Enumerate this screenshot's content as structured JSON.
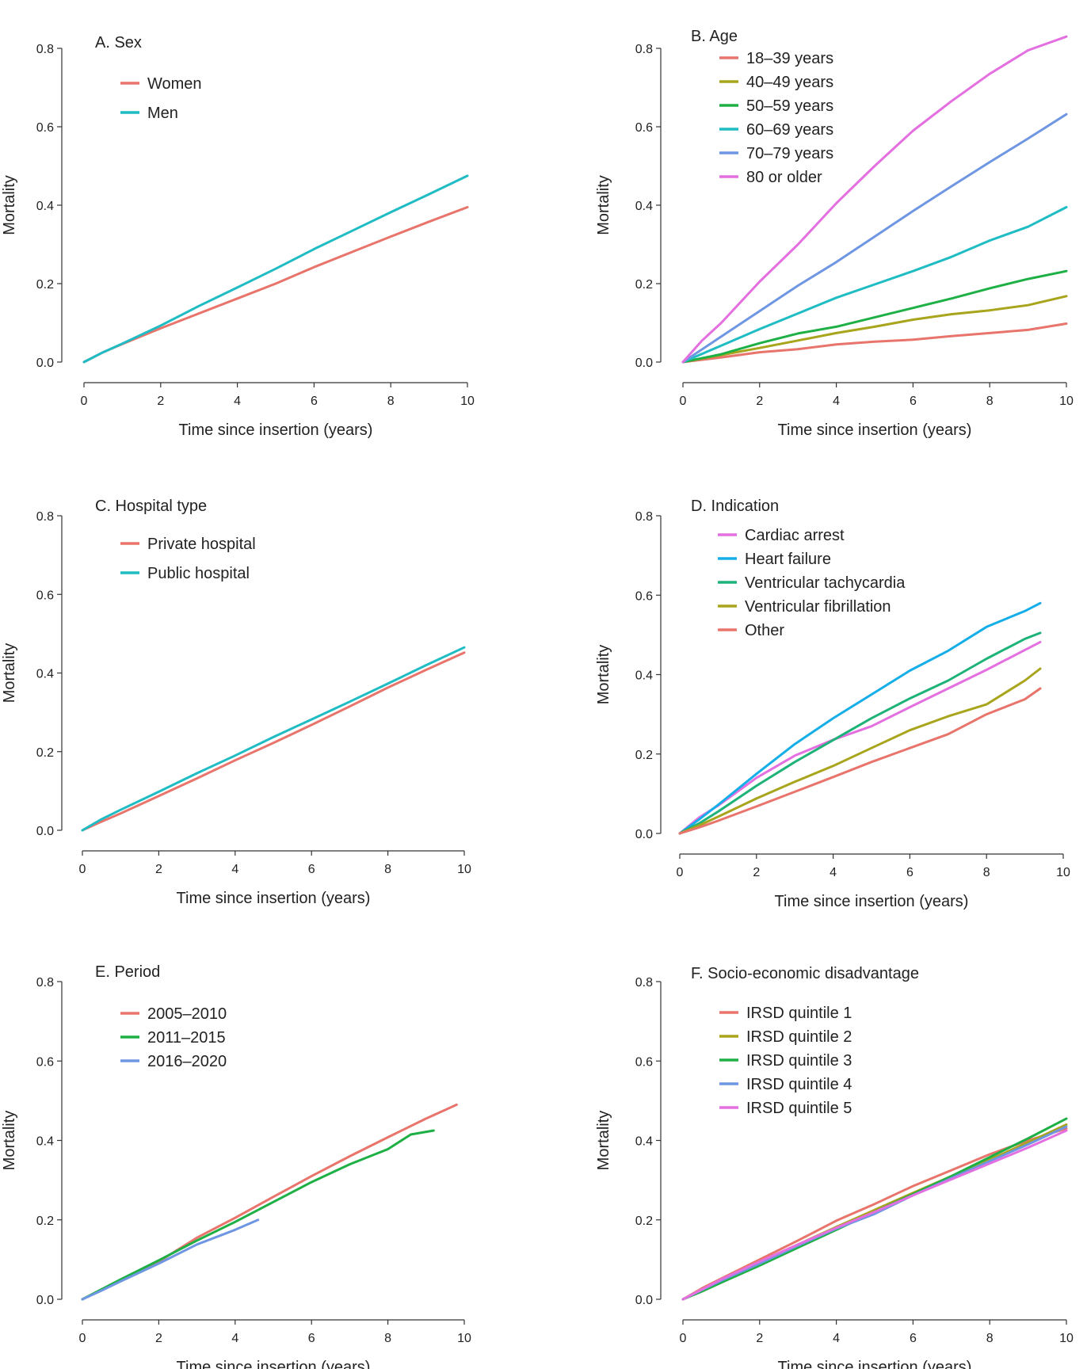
{
  "colors": {
    "red": "#e8746b",
    "teal": "#1fbcc4",
    "olive": "#a8a51c",
    "green": "#1eb045",
    "blue": "#6f96e2",
    "magenta": "#e46fe0",
    "heart_failure_blue": "#15aee8",
    "green_teal": "#1db378",
    "axis": "#333333",
    "text": "#222222"
  },
  "chart_data": [
    {
      "id": "A",
      "type": "line",
      "title": "A.  Sex",
      "xlabel": "Time since insertion (years)",
      "ylabel": "Mortality",
      "xlim": [
        0,
        10
      ],
      "ylim": [
        0,
        0.8
      ],
      "x_ticks": [
        "0",
        "2",
        "4",
        "6",
        "8",
        "10"
      ],
      "y_ticks": [
        "0.0",
        "0.2",
        "0.4",
        "0.6",
        "0.8"
      ],
      "grid": false,
      "legend_position": "top-left",
      "series": [
        {
          "name": "Women",
          "color": "#e8746b",
          "x": [
            0,
            0.5,
            1,
            2,
            3,
            4,
            5,
            6,
            7,
            8,
            9,
            10
          ],
          "y": [
            0,
            0.025,
            0.046,
            0.086,
            0.124,
            0.162,
            0.2,
            0.242,
            0.281,
            0.32,
            0.358,
            0.395
          ]
        },
        {
          "name": "Men",
          "color": "#1fbcc4",
          "x": [
            0,
            0.5,
            1,
            2,
            3,
            4,
            5,
            6,
            7,
            8,
            9,
            10
          ],
          "y": [
            0,
            0.025,
            0.047,
            0.093,
            0.143,
            0.19,
            0.238,
            0.288,
            0.335,
            0.382,
            0.428,
            0.475
          ]
        }
      ]
    },
    {
      "id": "B",
      "type": "line",
      "title": "B.  Age",
      "xlabel": "Time since insertion (years)",
      "ylabel": "Mortality",
      "xlim": [
        0,
        10
      ],
      "ylim": [
        0,
        0.8
      ],
      "x_ticks": [
        "0",
        "2",
        "4",
        "6",
        "8",
        "10"
      ],
      "y_ticks": [
        "0.0",
        "0.2",
        "0.4",
        "0.6",
        "0.8"
      ],
      "grid": false,
      "legend_position": "top-left",
      "series": [
        {
          "name": "18–39 years",
          "color": "#e8746b",
          "x": [
            0,
            1,
            2,
            3,
            4,
            5,
            6,
            7,
            8,
            9,
            10
          ],
          "y": [
            0,
            0.012,
            0.025,
            0.033,
            0.045,
            0.052,
            0.057,
            0.066,
            0.074,
            0.082,
            0.098
          ]
        },
        {
          "name": "40–49 years",
          "color": "#a8a51c",
          "x": [
            0,
            1,
            2,
            3,
            4,
            5,
            6,
            7,
            8,
            9,
            10
          ],
          "y": [
            0,
            0.018,
            0.036,
            0.055,
            0.074,
            0.09,
            0.108,
            0.122,
            0.132,
            0.145,
            0.168
          ]
        },
        {
          "name": "50–59 years",
          "color": "#1eb045",
          "x": [
            0,
            1,
            2,
            3,
            4,
            5,
            6,
            7,
            8,
            9,
            10
          ],
          "y": [
            0,
            0.02,
            0.048,
            0.073,
            0.09,
            0.114,
            0.138,
            0.162,
            0.188,
            0.212,
            0.232
          ]
        },
        {
          "name": "60–69 years",
          "color": "#1fbcc4",
          "x": [
            0,
            1,
            2,
            3,
            4,
            5,
            6,
            7,
            8,
            9,
            10
          ],
          "y": [
            0,
            0.042,
            0.084,
            0.124,
            0.164,
            0.198,
            0.232,
            0.268,
            0.31,
            0.345,
            0.395
          ]
        },
        {
          "name": "70–79 years",
          "color": "#6f96e2",
          "x": [
            0,
            1,
            2,
            3,
            4,
            5,
            6,
            7,
            8,
            9,
            10
          ],
          "y": [
            0,
            0.065,
            0.13,
            0.195,
            0.255,
            0.32,
            0.385,
            0.448,
            0.51,
            0.57,
            0.632
          ]
        },
        {
          "name": "80 or older",
          "color": "#e46fe0",
          "x": [
            0,
            0.5,
            1,
            2,
            3,
            4,
            5,
            6,
            7,
            8,
            9,
            10
          ],
          "y": [
            0,
            0.055,
            0.1,
            0.205,
            0.3,
            0.405,
            0.5,
            0.59,
            0.665,
            0.735,
            0.795,
            0.83
          ]
        }
      ]
    },
    {
      "id": "C",
      "type": "line",
      "title": "C.  Hospital type",
      "xlabel": "Time since insertion (years)",
      "ylabel": "Mortality",
      "xlim": [
        0,
        10
      ],
      "ylim": [
        0,
        0.8
      ],
      "x_ticks": [
        "0",
        "2",
        "4",
        "6",
        "8",
        "10"
      ],
      "y_ticks": [
        "0.0",
        "0.2",
        "0.4",
        "0.6",
        "0.8"
      ],
      "grid": false,
      "legend_position": "top-left",
      "series": [
        {
          "name": "Private hospital",
          "color": "#e8746b",
          "x": [
            0,
            0.5,
            1,
            2,
            3,
            4,
            5,
            6,
            7,
            8,
            9,
            10
          ],
          "y": [
            0,
            0.022,
            0.043,
            0.087,
            0.132,
            0.178,
            0.222,
            0.268,
            0.315,
            0.363,
            0.408,
            0.452
          ]
        },
        {
          "name": "Public hospital",
          "color": "#1fbcc4",
          "x": [
            0,
            0.5,
            1,
            2,
            3,
            4,
            5,
            6,
            7,
            8,
            9,
            10
          ],
          "y": [
            0,
            0.028,
            0.052,
            0.098,
            0.145,
            0.19,
            0.237,
            0.282,
            0.327,
            0.373,
            0.42,
            0.465
          ]
        }
      ]
    },
    {
      "id": "D",
      "type": "line",
      "title": "D.  Indication",
      "xlabel": "Time since insertion (years)",
      "ylabel": "Mortality",
      "xlim": [
        0,
        10
      ],
      "ylim": [
        0,
        0.8
      ],
      "x_ticks": [
        "0",
        "2",
        "4",
        "6",
        "8",
        "10"
      ],
      "y_ticks": [
        "0.0",
        "0.2",
        "0.4",
        "0.6",
        "0.8"
      ],
      "grid": false,
      "legend_position": "top-left",
      "series": [
        {
          "name": "Cardiac arrest",
          "color": "#e46fe0",
          "x": [
            0,
            0.5,
            1,
            2,
            3,
            4,
            5,
            6,
            7,
            8,
            9,
            9.4
          ],
          "y": [
            0,
            0.04,
            0.07,
            0.14,
            0.196,
            0.236,
            0.27,
            0.318,
            0.365,
            0.412,
            0.462,
            0.482
          ]
        },
        {
          "name": "Heart failure",
          "color": "#15aee8",
          "x": [
            0,
            0.5,
            1,
            2,
            3,
            4,
            5,
            6,
            7,
            8,
            9,
            9.4
          ],
          "y": [
            0,
            0.035,
            0.072,
            0.15,
            0.225,
            0.29,
            0.35,
            0.41,
            0.46,
            0.52,
            0.56,
            0.58
          ]
        },
        {
          "name": "Ventricular tachycardia",
          "color": "#1db378",
          "x": [
            0,
            0.5,
            1,
            2,
            3,
            4,
            5,
            6,
            7,
            8,
            9,
            9.4
          ],
          "y": [
            0,
            0.025,
            0.055,
            0.12,
            0.18,
            0.235,
            0.29,
            0.34,
            0.385,
            0.44,
            0.49,
            0.505
          ]
        },
        {
          "name": "Ventricular fibrillation",
          "color": "#a8a51c",
          "x": [
            0,
            0.5,
            1,
            2,
            3,
            4,
            5,
            6,
            7,
            8,
            9,
            9.4
          ],
          "y": [
            0,
            0.02,
            0.042,
            0.088,
            0.13,
            0.17,
            0.215,
            0.26,
            0.295,
            0.325,
            0.385,
            0.415
          ]
        },
        {
          "name": "Other",
          "color": "#e8746b",
          "x": [
            0,
            0.5,
            1,
            2,
            3,
            4,
            5,
            6,
            7,
            8,
            9,
            9.4
          ],
          "y": [
            0,
            0.015,
            0.032,
            0.068,
            0.105,
            0.142,
            0.18,
            0.215,
            0.25,
            0.3,
            0.338,
            0.365
          ]
        }
      ]
    },
    {
      "id": "E",
      "type": "line",
      "title": "E.  Period",
      "xlabel": "Time since insertion (years)",
      "ylabel": "Mortality",
      "xlim": [
        0,
        10
      ],
      "ylim": [
        0,
        0.8
      ],
      "x_ticks": [
        "0",
        "2",
        "4",
        "6",
        "8",
        "10"
      ],
      "y_ticks": [
        "0.0",
        "0.2",
        "0.4",
        "0.6",
        "0.8"
      ],
      "grid": false,
      "legend_position": "top-left",
      "series": [
        {
          "name": "2005–2010",
          "color": "#e8746b",
          "x": [
            0,
            0.5,
            1,
            2,
            3,
            4,
            5,
            6,
            7,
            8,
            9,
            9.8
          ],
          "y": [
            0,
            0.024,
            0.048,
            0.095,
            0.155,
            0.205,
            0.258,
            0.31,
            0.36,
            0.408,
            0.455,
            0.49
          ]
        },
        {
          "name": "2011–2015",
          "color": "#1eb045",
          "x": [
            0,
            0.5,
            1,
            2,
            3,
            4,
            5,
            6,
            7,
            8,
            8.6,
            9.2
          ],
          "y": [
            0,
            0.025,
            0.05,
            0.098,
            0.148,
            0.195,
            0.245,
            0.295,
            0.34,
            0.378,
            0.415,
            0.425
          ]
        },
        {
          "name": "2016–2020",
          "color": "#6f96e2",
          "x": [
            0,
            0.5,
            1,
            2,
            3,
            4,
            4.6
          ],
          "y": [
            0,
            0.022,
            0.045,
            0.09,
            0.138,
            0.175,
            0.2
          ]
        }
      ]
    },
    {
      "id": "F",
      "type": "line",
      "title": "F.  Socio-economic disadvantage",
      "xlabel": "Time since insertion (years)",
      "ylabel": "Mortality",
      "xlim": [
        0,
        10
      ],
      "ylim": [
        0,
        0.8
      ],
      "x_ticks": [
        "0",
        "2",
        "4",
        "6",
        "8",
        "10"
      ],
      "y_ticks": [
        "0.0",
        "0.2",
        "0.4",
        "0.6",
        "0.8"
      ],
      "grid": false,
      "legend_position": "top-left",
      "series": [
        {
          "name": "IRSD quintile 1",
          "color": "#e8746b",
          "x": [
            0,
            0.5,
            1,
            2,
            3,
            4,
            5,
            6,
            7,
            8,
            9,
            10
          ],
          "y": [
            0,
            0.028,
            0.052,
            0.1,
            0.148,
            0.198,
            0.24,
            0.285,
            0.325,
            0.365,
            0.4,
            0.43
          ]
        },
        {
          "name": "IRSD quintile 2",
          "color": "#a8a51c",
          "x": [
            0,
            0.5,
            1,
            2,
            3,
            4,
            5,
            6,
            7,
            8,
            9,
            10
          ],
          "y": [
            0,
            0.024,
            0.048,
            0.092,
            0.138,
            0.182,
            0.225,
            0.268,
            0.31,
            0.352,
            0.395,
            0.44
          ]
        },
        {
          "name": "IRSD quintile 3",
          "color": "#1eb045",
          "x": [
            0,
            0.5,
            1,
            2,
            3,
            4,
            5,
            6,
            7,
            8,
            9,
            10
          ],
          "y": [
            0,
            0.02,
            0.042,
            0.085,
            0.13,
            0.175,
            0.22,
            0.265,
            0.31,
            0.358,
            0.405,
            0.455
          ]
        },
        {
          "name": "IRSD quintile 4",
          "color": "#6f96e2",
          "x": [
            0,
            0.5,
            1,
            2,
            3,
            4,
            5,
            6,
            7,
            8,
            9,
            10
          ],
          "y": [
            0,
            0.024,
            0.047,
            0.09,
            0.135,
            0.178,
            0.215,
            0.262,
            0.305,
            0.348,
            0.39,
            0.435
          ]
        },
        {
          "name": "IRSD quintile 5",
          "color": "#e46fe0",
          "x": [
            0,
            0.5,
            1,
            2,
            3,
            4,
            5,
            6,
            7,
            8,
            9,
            10
          ],
          "y": [
            0,
            0.025,
            0.05,
            0.095,
            0.138,
            0.18,
            0.22,
            0.262,
            0.302,
            0.342,
            0.382,
            0.425
          ]
        }
      ]
    }
  ]
}
